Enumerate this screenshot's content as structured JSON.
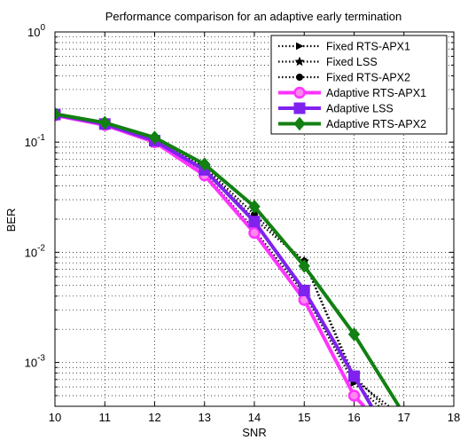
{
  "chart_data": {
    "type": "line",
    "title": "Performance comparison for an adaptive early termination",
    "xlabel": "SNR",
    "ylabel": "BER",
    "xlim": [
      10,
      18
    ],
    "ylim": [
      0.0004,
      1
    ],
    "y_scale": "log",
    "grid": true,
    "legend_position": "top-right",
    "x_ticks": [
      "10",
      "11",
      "12",
      "13",
      "14",
      "15",
      "16",
      "17",
      "18"
    ],
    "y_ticks": [
      {
        "base": "10",
        "exp": "0",
        "value": 1
      },
      {
        "base": "10",
        "exp": "-1",
        "value": 0.1
      },
      {
        "base": "10",
        "exp": "-2",
        "value": 0.01
      },
      {
        "base": "10",
        "exp": "-3",
        "value": 0.001
      }
    ],
    "series": [
      {
        "name": "Fixed RTS-APX1",
        "color": "#000000",
        "style": "dotted",
        "marker": "triangle-right",
        "x": [
          10,
          11,
          12,
          13,
          14,
          15,
          16,
          16.5
        ],
        "y": [
          0.18,
          0.145,
          0.1,
          0.052,
          0.016,
          0.0042,
          0.00065,
          0.0004
        ]
      },
      {
        "name": "Fixed LSS",
        "color": "#000000",
        "style": "dotted",
        "marker": "star",
        "x": [
          10,
          11,
          12,
          13,
          14,
          15,
          16,
          16.6
        ],
        "y": [
          0.18,
          0.147,
          0.105,
          0.058,
          0.02,
          0.0083,
          0.00075,
          0.0004
        ]
      },
      {
        "name": "Fixed RTS-APX2",
        "color": "#000000",
        "style": "dotted",
        "marker": "circle",
        "x": [
          10,
          11,
          12,
          13,
          14,
          15,
          16,
          16.7
        ],
        "y": [
          0.18,
          0.148,
          0.107,
          0.06,
          0.022,
          0.0083,
          0.0007,
          0.0004
        ]
      },
      {
        "name": "Adaptive RTS-APX1",
        "color": "#ff33ff",
        "style": "solid",
        "marker": "circle",
        "x": [
          10,
          11,
          12,
          13,
          14,
          15,
          16,
          16.2
        ],
        "y": [
          0.175,
          0.143,
          0.1,
          0.05,
          0.015,
          0.0037,
          0.0005,
          0.0004
        ]
      },
      {
        "name": "Adaptive LSS",
        "color": "#7f22ee",
        "style": "solid",
        "marker": "square",
        "x": [
          10,
          11,
          12,
          13,
          14,
          15,
          16,
          16.35
        ],
        "y": [
          0.178,
          0.146,
          0.103,
          0.056,
          0.019,
          0.0045,
          0.00075,
          0.0004
        ]
      },
      {
        "name": "Adaptive RTS-APX2",
        "color": "#128012",
        "style": "solid",
        "marker": "diamond",
        "x": [
          10,
          11,
          12,
          13,
          14,
          15,
          16,
          16.9
        ],
        "y": [
          0.18,
          0.15,
          0.11,
          0.063,
          0.026,
          0.0075,
          0.0018,
          0.0004
        ]
      }
    ]
  }
}
